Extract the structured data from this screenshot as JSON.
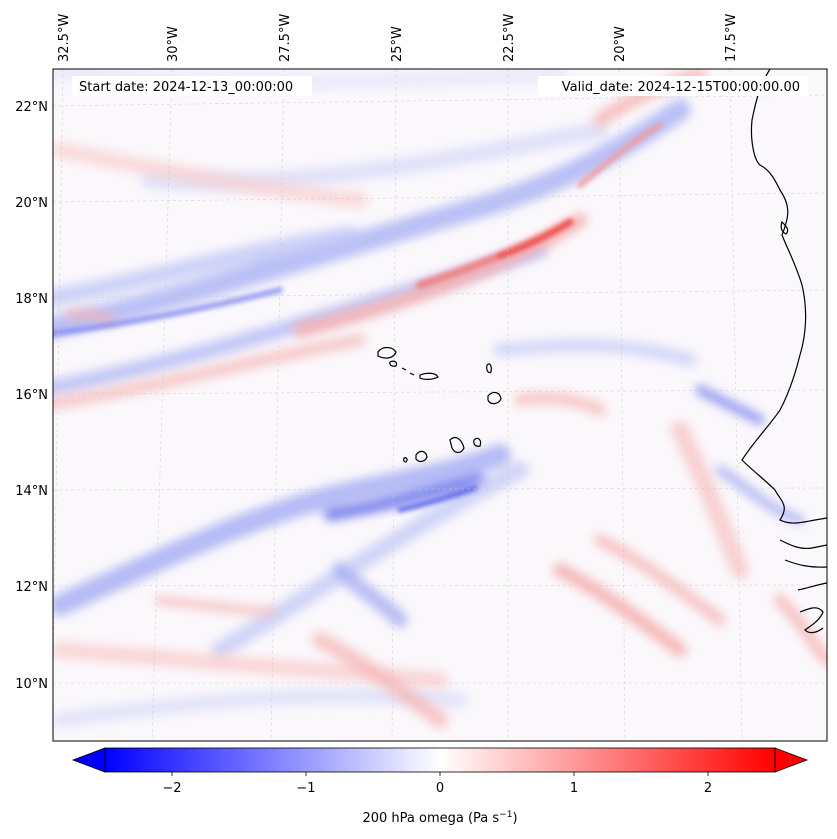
{
  "header": {
    "start_date": "Start date: 2024-12-13_00:00:00",
    "valid_date": "Valid_date: 2024-12-15T00:00:00.00"
  },
  "map": {
    "lon_ticks": [
      "32.5°W",
      "30°W",
      "27.5°W",
      "25°W",
      "22.5°W",
      "20°W",
      "17.5°W"
    ],
    "lat_ticks": [
      "22°N",
      "20°N",
      "18°N",
      "16°N",
      "14°N",
      "12°N",
      "10°N"
    ],
    "lon_range": [
      -33.0,
      -15.5
    ],
    "lat_range": [
      8.8,
      22.8
    ]
  },
  "colorbar": {
    "label_main": "200 hPa omega (Pa s",
    "label_sup": "−1",
    "label_close": ")",
    "ticks": [
      "−2",
      "−1",
      "0",
      "1",
      "2"
    ],
    "range": [
      -2.5,
      2.5
    ],
    "colors": {
      "negative": "#0000ff",
      "zero": "#ffffff",
      "positive": "#ff0000"
    }
  }
}
